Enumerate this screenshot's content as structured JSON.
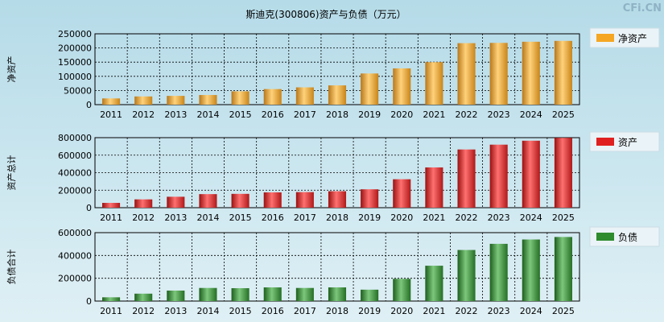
{
  "title": "斯迪克(300806)资产与负债（万元）",
  "watermark": "CFi.CN",
  "colors": {
    "equity": "#f5a623",
    "assets": "#e02020",
    "liabilities": "#2e8b2e"
  },
  "chart_data": [
    {
      "type": "bar",
      "title": "斯迪克(300806)资产与负债（万元）",
      "ylabel": "净资产",
      "legend": "净资产",
      "categories": [
        "2011",
        "2012",
        "2013",
        "2014",
        "2015",
        "2016",
        "2017",
        "2018",
        "2019",
        "2020",
        "2021",
        "2022",
        "2023",
        "2024",
        "2025"
      ],
      "values": [
        22000,
        29000,
        31000,
        34000,
        47000,
        55000,
        61000,
        68000,
        110000,
        128000,
        150000,
        217000,
        218000,
        222000,
        225000
      ],
      "yticks": [
        "0",
        "50000",
        "100000",
        "150000",
        "200000",
        "250000"
      ],
      "ylim": [
        0,
        250000
      ]
    },
    {
      "type": "bar",
      "ylabel": "资产总计",
      "legend": "资产",
      "categories": [
        "2011",
        "2012",
        "2013",
        "2014",
        "2015",
        "2016",
        "2017",
        "2018",
        "2019",
        "2020",
        "2021",
        "2022",
        "2023",
        "2024",
        "2025"
      ],
      "values": [
        55000,
        95000,
        125000,
        155000,
        158000,
        175000,
        178000,
        188000,
        210000,
        325000,
        460000,
        665000,
        720000,
        765000,
        798000
      ],
      "yticks": [
        "0",
        "200000",
        "400000",
        "600000",
        "800000"
      ],
      "ylim": [
        0,
        800000
      ]
    },
    {
      "type": "bar",
      "ylabel": "负债合计",
      "legend": "负债",
      "categories": [
        "2011",
        "2012",
        "2013",
        "2014",
        "2015",
        "2016",
        "2017",
        "2018",
        "2019",
        "2020",
        "2021",
        "2022",
        "2023",
        "2024",
        "2025"
      ],
      "values": [
        33000,
        65000,
        92000,
        115000,
        113000,
        120000,
        115000,
        120000,
        100000,
        195000,
        310000,
        448000,
        502000,
        540000,
        562000
      ],
      "yticks": [
        "0",
        "200000",
        "400000",
        "600000"
      ],
      "ylim": [
        0,
        600000
      ]
    }
  ]
}
